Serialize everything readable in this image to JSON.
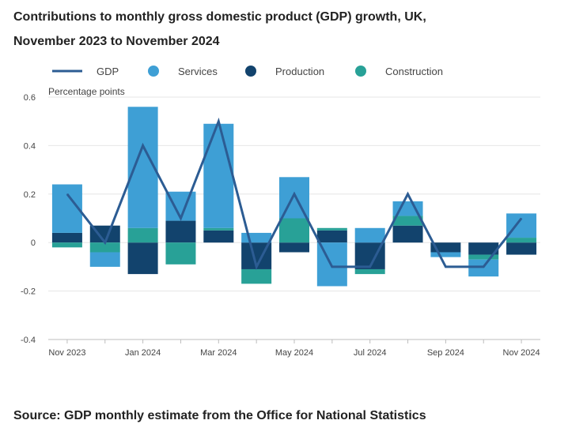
{
  "title_line1": "Contributions to monthly gross domestic product (GDP) growth, UK,",
  "title_line2": "November 2023 to November 2024",
  "source": "Source: GDP monthly estimate from the Office for National Statistics",
  "chart_data": {
    "type": "bar",
    "stacked": true,
    "title": "Contributions to monthly gross domestic product (GDP) growth, UK, November 2023 to November 2024",
    "ylabel": "Percentage points",
    "xlabel": "",
    "ylim": [
      -0.4,
      0.6
    ],
    "yticks": [
      0.6,
      0.4,
      0.2,
      0,
      -0.2,
      -0.4
    ],
    "ytick_labels": [
      "0.6",
      "0.4",
      "0.2",
      "0",
      "-0.2",
      "-0.4"
    ],
    "grid": true,
    "legend_position": "top",
    "categories": [
      "Nov 2023",
      "Dec 2023",
      "Jan 2024",
      "Feb 2024",
      "Mar 2024",
      "Apr 2024",
      "May 2024",
      "Jun 2024",
      "Jul 2024",
      "Aug 2024",
      "Sep 2024",
      "Oct 2024",
      "Nov 2024"
    ],
    "xtick_labels": [
      "Nov 2023",
      "",
      "Jan 2024",
      "",
      "Mar 2024",
      "",
      "May 2024",
      "",
      "Jul 2024",
      "",
      "Sep 2024",
      "",
      "Nov 2024"
    ],
    "series": [
      {
        "name": "Production",
        "type": "bar",
        "color": "#12436d",
        "values": [
          0.04,
          0.07,
          -0.13,
          0.09,
          0.05,
          -0.11,
          -0.04,
          0.05,
          -0.11,
          0.07,
          -0.04,
          -0.05,
          -0.05
        ]
      },
      {
        "name": "Construction",
        "type": "bar",
        "color": "#28a197",
        "values": [
          -0.02,
          -0.04,
          0.06,
          -0.09,
          0.01,
          -0.06,
          0.1,
          0.01,
          -0.02,
          0.04,
          0,
          -0.02,
          0.02
        ]
      },
      {
        "name": "Services",
        "type": "bar",
        "color": "#3e9fd5",
        "values": [
          0.2,
          -0.06,
          0.5,
          0.12,
          0.43,
          0.04,
          0.17,
          -0.18,
          0.06,
          0.06,
          -0.02,
          -0.07,
          0.1
        ]
      },
      {
        "name": "GDP",
        "type": "line",
        "color": "#2c5c93",
        "values": [
          0.2,
          0.0,
          0.4,
          0.1,
          0.5,
          -0.1,
          0.2,
          -0.1,
          -0.1,
          0.2,
          -0.1,
          -0.1,
          0.1
        ]
      }
    ],
    "legend": [
      "GDP",
      "Services",
      "Production",
      "Construction"
    ]
  }
}
